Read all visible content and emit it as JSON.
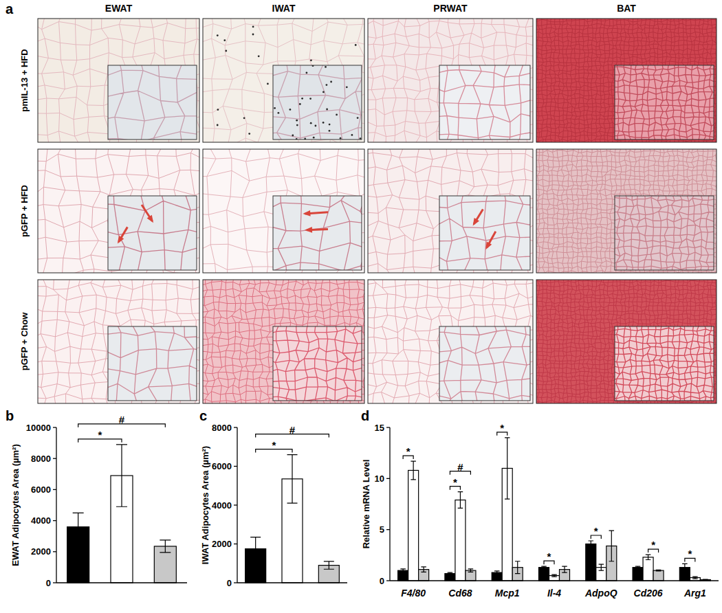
{
  "panel_a": {
    "label": "a",
    "columns": [
      "EWAT",
      "IWAT",
      "PRWAT",
      "BAT"
    ],
    "rows": [
      "pmIL-13 + HFD",
      "pGFP + HFD",
      "pGFP + Chow"
    ]
  },
  "chart_data": [
    {
      "type": "bar",
      "title": "b",
      "ylabel": "EWAT Adipocytes Area (µm²)",
      "categories": [
        null,
        null,
        null
      ],
      "values": [
        3600,
        6900,
        2350
      ],
      "errors": [
        900,
        2000,
        400
      ],
      "colors": [
        "#000000",
        "#ffffff",
        "#c8c8c8"
      ],
      "ylim": [
        0,
        10000
      ],
      "yticks": [
        0,
        2000,
        4000,
        6000,
        8000,
        10000
      ],
      "annotations": [
        {
          "text": "*",
          "from": 0,
          "to": 1
        },
        {
          "text": "#",
          "from": 0,
          "to": 2
        }
      ]
    },
    {
      "type": "bar",
      "title": "c",
      "ylabel": "IWAT Adipocytes Area (µm²)",
      "categories": [
        null,
        null,
        null
      ],
      "values": [
        1750,
        5350,
        900
      ],
      "errors": [
        600,
        1250,
        200
      ],
      "colors": [
        "#000000",
        "#ffffff",
        "#c8c8c8"
      ],
      "ylim": [
        0,
        8000
      ],
      "yticks": [
        0,
        2000,
        4000,
        6000,
        8000
      ],
      "annotations": [
        {
          "text": "*",
          "from": 0,
          "to": 1
        },
        {
          "text": "#",
          "from": 0,
          "to": 2
        }
      ]
    },
    {
      "type": "bar",
      "title": "d",
      "ylabel": "Relative mRNA Level",
      "categories": [
        "F4/80",
        "Cd68",
        "Mcp1",
        "Il-4",
        "AdpoQ",
        "Cd206",
        "Arg1"
      ],
      "series": [
        {
          "color": "#000000",
          "values": [
            1.0,
            0.7,
            0.8,
            1.3,
            3.6,
            1.3,
            1.3
          ],
          "errors": [
            0.15,
            0.1,
            0.15,
            0.1,
            0.3,
            0.1,
            0.35
          ]
        },
        {
          "color": "#ffffff",
          "values": [
            10.8,
            7.9,
            11.0,
            0.5,
            1.3,
            2.3,
            0.3
          ],
          "errors": [
            0.9,
            0.8,
            3.0,
            0.1,
            0.3,
            0.25,
            0.1
          ]
        },
        {
          "color": "#c8c8c8",
          "values": [
            1.1,
            1.0,
            1.3,
            1.1,
            3.4,
            1.0,
            0.1
          ],
          "errors": [
            0.25,
            0.15,
            0.6,
            0.3,
            1.5,
            0.05,
            0.02
          ]
        }
      ],
      "ylim": [
        0,
        15
      ],
      "yticks": [
        0,
        5,
        10,
        15
      ],
      "annotations": [
        {
          "text": "*",
          "category": 0,
          "from": 0,
          "to": 1
        },
        {
          "text": "*",
          "category": 1,
          "from": 0,
          "to": 1
        },
        {
          "text": "#",
          "category": 1,
          "from": 0,
          "to": 2
        },
        {
          "text": "*",
          "category": 2,
          "from": 0,
          "to": 1
        },
        {
          "text": "*",
          "category": 3,
          "from": 0,
          "to": 1
        },
        {
          "text": "*",
          "category": 4,
          "from": 0,
          "to": 1
        },
        {
          "text": "*",
          "category": 5,
          "from": 1,
          "to": 2
        },
        {
          "text": "*",
          "category": 6,
          "from": 0,
          "to": 1
        }
      ]
    }
  ]
}
